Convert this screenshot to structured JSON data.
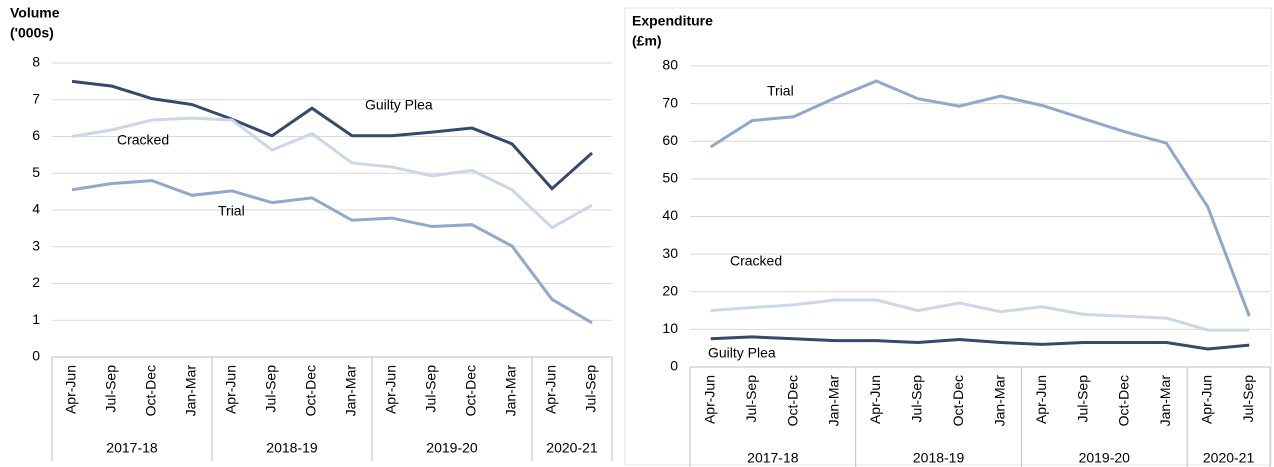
{
  "chart_data": [
    {
      "type": "line",
      "y_label": [
        "Volume",
        "('000s)"
      ],
      "categories": [
        "Apr-Jun",
        "Jul-Sep",
        "Oct-Dec",
        "Jan-Mar",
        "Apr-Jun",
        "Jul-Sep",
        "Oct-Dec",
        "Jan-Mar",
        "Apr-Jun",
        "Jul-Sep",
        "Oct-Dec",
        "Jan-Mar",
        "Apr-Jun",
        "Jul-Sep"
      ],
      "category_groups": [
        "2017-18",
        "2017-18",
        "2017-18",
        "2017-18",
        "2018-19",
        "2018-19",
        "2018-19",
        "2018-19",
        "2019-20",
        "2019-20",
        "2019-20",
        "2019-20",
        "2020-21",
        "2020-21"
      ],
      "ylim": [
        0,
        8
      ],
      "yticks": [
        0,
        1,
        2,
        3,
        4,
        5,
        6,
        7,
        8
      ],
      "grid": true,
      "series": [
        {
          "name": "Guilty Plea",
          "color": "#34496c",
          "values": [
            7.5,
            7.37,
            7.03,
            6.87,
            6.47,
            6.02,
            6.77,
            6.02,
            6.02,
            6.12,
            6.23,
            5.8,
            4.58,
            5.55
          ]
        },
        {
          "name": "Cracked",
          "color": "#cbd7e8",
          "values": [
            6.0,
            6.18,
            6.45,
            6.5,
            6.45,
            5.63,
            6.08,
            5.28,
            5.17,
            4.93,
            5.08,
            4.55,
            3.52,
            4.13
          ]
        },
        {
          "name": "Trial",
          "color": "#8fa8cb",
          "values": [
            4.55,
            4.72,
            4.8,
            4.4,
            4.52,
            4.2,
            4.33,
            3.72,
            3.78,
            3.55,
            3.6,
            3.02,
            1.57,
            0.93
          ]
        }
      ]
    },
    {
      "type": "line",
      "y_label": [
        "Expenditure",
        "(£m)"
      ],
      "categories": [
        "Apr-Jun",
        "Jul-Sep",
        "Oct-Dec",
        "Jan-Mar",
        "Apr-Jun",
        "Jul-Sep",
        "Oct-Dec",
        "Jan-Mar",
        "Apr-Jun",
        "Jul-Sep",
        "Oct-Dec",
        "Jan-Mar",
        "Apr-Jun",
        "Jul-Sep"
      ],
      "category_groups": [
        "2017-18",
        "2017-18",
        "2017-18",
        "2017-18",
        "2018-19",
        "2018-19",
        "2018-19",
        "2018-19",
        "2019-20",
        "2019-20",
        "2019-20",
        "2019-20",
        "2020-21",
        "2020-21"
      ],
      "ylim": [
        0,
        80
      ],
      "yticks": [
        0,
        10,
        20,
        30,
        40,
        50,
        60,
        70,
        80
      ],
      "grid": true,
      "series": [
        {
          "name": "Trial",
          "color": "#8fa8cb",
          "values": [
            58.5,
            65.5,
            66.5,
            71.5,
            76,
            71.3,
            69.3,
            72,
            69.5,
            66,
            62.5,
            59.5,
            42.5,
            13.5
          ]
        },
        {
          "name": "Cracked",
          "color": "#cbd7e8",
          "values": [
            15,
            15.8,
            16.5,
            17.8,
            17.8,
            15,
            17,
            14.7,
            16,
            14,
            13.5,
            13,
            9.8,
            9.8
          ]
        },
        {
          "name": "Guilty Plea",
          "color": "#34496c",
          "values": [
            7.5,
            8,
            7.5,
            7,
            7,
            6.5,
            7.3,
            6.5,
            6,
            6.5,
            6.5,
            6.5,
            4.8,
            5.8
          ]
        }
      ]
    }
  ]
}
